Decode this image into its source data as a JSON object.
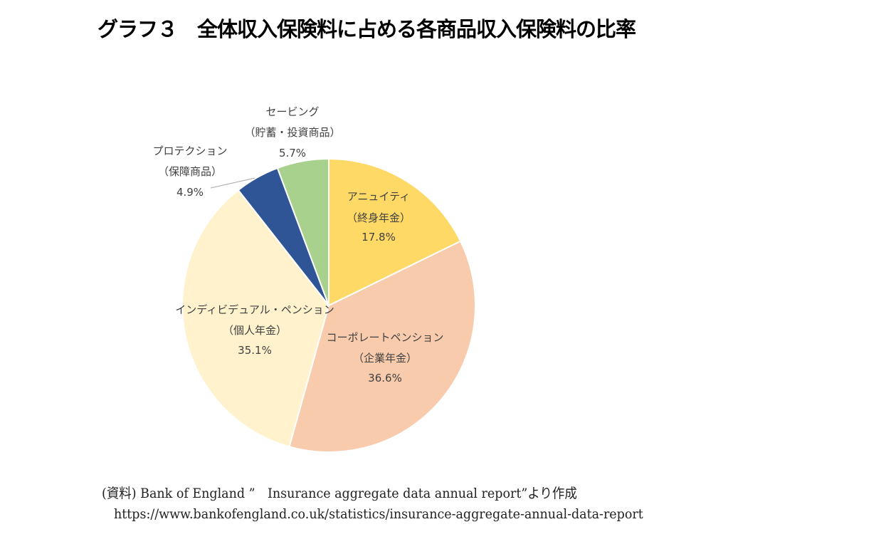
{
  "title": "グラフ３　全体収入保険料に占める各商品収入保険料の比率",
  "chart_data": {
    "type": "pie",
    "title": "グラフ３　全体収入保険料に占める各商品収入保険料の比率",
    "start_angle": "12 o'clock",
    "direction": "clockwise",
    "slices": [
      {
        "name": "アニュイティ",
        "sub": "（終身年金）",
        "value": 17.8,
        "label": "17.8%",
        "color": "#FFD966"
      },
      {
        "name": "コーポレートペンション",
        "sub": "（企業年金）",
        "value": 36.6,
        "label": "36.6%",
        "color": "#F8CBAD"
      },
      {
        "name": "インディビデュアル・ペンション",
        "sub": "（個人年金）",
        "value": 35.1,
        "label": "35.1%",
        "color": "#FFF2CC"
      },
      {
        "name": "プロテクション",
        "sub": "（保障商品）",
        "value": 4.9,
        "label": "4.9%",
        "color": "#2F5597"
      },
      {
        "name": "セービング",
        "sub": "（貯蓄・投資商品）",
        "value": 5.7,
        "label": "5.7%",
        "color": "#A9D18E"
      }
    ]
  },
  "source": {
    "line1": "(資料) Bank of England ”　Insurance aggregate data annual report”より作成",
    "line2": "https://www.bankofengland.co.uk/statistics/insurance-aggregate-annual-data-report"
  }
}
